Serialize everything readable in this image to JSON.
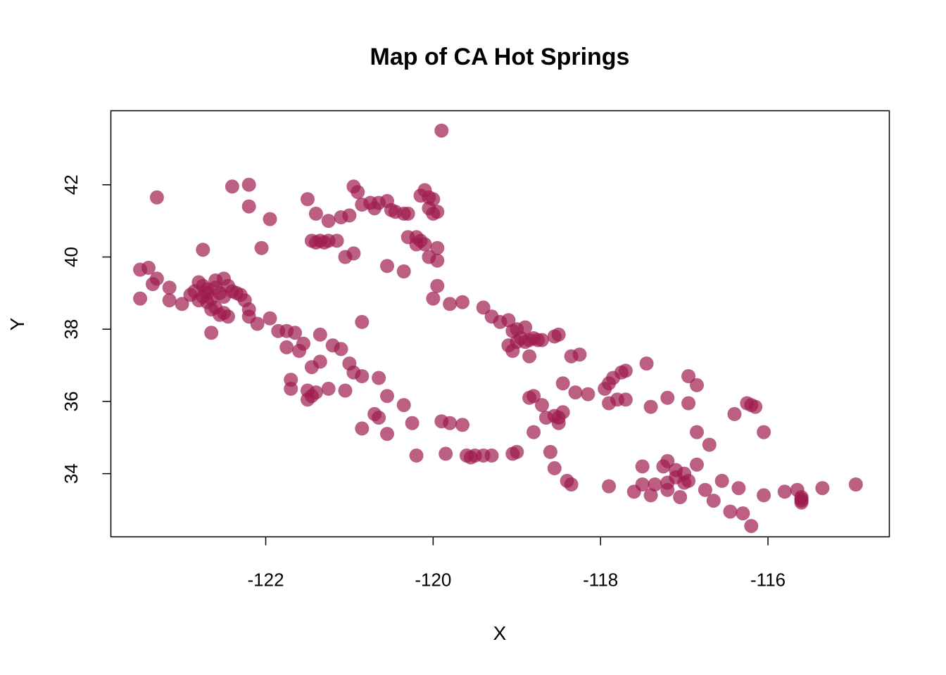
{
  "chart_data": {
    "type": "scatter",
    "title": "Map of CA Hot Springs",
    "xlabel": "X",
    "ylabel": "Y",
    "xlim": [
      -123.85,
      -114.55
    ],
    "ylim": [
      32.25,
      44.05
    ],
    "xticks": [
      -122,
      -120,
      -118,
      -116
    ],
    "yticks": [
      34,
      36,
      38,
      40,
      42
    ],
    "xtick_labels": [
      "-122",
      "-120",
      "-118",
      "-116"
    ],
    "ytick_labels": [
      "34",
      "36",
      "38",
      "40",
      "42"
    ],
    "grid": false,
    "legend": "none",
    "marker_color": "#9e1b4e",
    "marker_opacity": 0.7,
    "points": [
      [
        -119.9,
        43.5
      ],
      [
        -123.5,
        39.65
      ],
      [
        -123.4,
        39.7
      ],
      [
        -123.3,
        39.4
      ],
      [
        -123.35,
        39.25
      ],
      [
        -123.15,
        39.15
      ],
      [
        -123.5,
        38.85
      ],
      [
        -123.15,
        38.8
      ],
      [
        -123.0,
        38.7
      ],
      [
        -123.3,
        41.65
      ],
      [
        -122.9,
        38.95
      ],
      [
        -122.8,
        39.3
      ],
      [
        -122.75,
        38.9
      ],
      [
        -122.7,
        39.1
      ],
      [
        -122.65,
        38.85
      ],
      [
        -122.6,
        39.35
      ],
      [
        -122.55,
        39.0
      ],
      [
        -122.5,
        39.4
      ],
      [
        -122.45,
        39.2
      ],
      [
        -122.4,
        39.05
      ],
      [
        -122.35,
        39.0
      ],
      [
        -122.3,
        38.95
      ],
      [
        -122.75,
        39.2
      ],
      [
        -122.7,
        38.75
      ],
      [
        -122.6,
        38.6
      ],
      [
        -122.55,
        38.4
      ],
      [
        -122.5,
        38.45
      ],
      [
        -122.45,
        38.35
      ],
      [
        -122.65,
        38.55
      ],
      [
        -122.8,
        38.8
      ],
      [
        -122.85,
        39.05
      ],
      [
        -122.7,
        39.0
      ],
      [
        -122.6,
        39.15
      ],
      [
        -122.5,
        38.9
      ],
      [
        -122.75,
        40.2
      ],
      [
        -122.65,
        37.9
      ],
      [
        -122.25,
        38.8
      ],
      [
        -122.2,
        38.55
      ],
      [
        -122.2,
        38.35
      ],
      [
        -122.1,
        38.15
      ],
      [
        -121.95,
        38.3
      ],
      [
        -121.85,
        37.95
      ],
      [
        -121.75,
        37.95
      ],
      [
        -121.65,
        37.9
      ],
      [
        -121.75,
        37.5
      ],
      [
        -121.6,
        37.4
      ],
      [
        -121.55,
        37.6
      ],
      [
        -121.35,
        37.85
      ],
      [
        -121.2,
        37.55
      ],
      [
        -121.1,
        37.45
      ],
      [
        -121.35,
        37.1
      ],
      [
        -121.45,
        36.95
      ],
      [
        -121.7,
        36.6
      ],
      [
        -121.7,
        36.35
      ],
      [
        -121.5,
        36.3
      ],
      [
        -121.45,
        36.15
      ],
      [
        -121.5,
        36.05
      ],
      [
        -121.4,
        36.25
      ],
      [
        -121.25,
        36.35
      ],
      [
        -122.4,
        41.95
      ],
      [
        -122.2,
        42.0
      ],
      [
        -122.2,
        41.4
      ],
      [
        -122.05,
        40.25
      ],
      [
        -121.95,
        41.05
      ],
      [
        -121.5,
        41.6
      ],
      [
        -121.4,
        41.2
      ],
      [
        -121.25,
        41.0
      ],
      [
        -121.1,
        41.1
      ],
      [
        -121.0,
        41.15
      ],
      [
        -121.45,
        40.45
      ],
      [
        -121.35,
        40.45
      ],
      [
        -121.3,
        40.4
      ],
      [
        -121.25,
        40.45
      ],
      [
        -121.4,
        40.4
      ],
      [
        -121.15,
        40.45
      ],
      [
        -120.95,
        41.95
      ],
      [
        -120.9,
        41.8
      ],
      [
        -120.85,
        41.45
      ],
      [
        -120.75,
        41.5
      ],
      [
        -120.7,
        41.35
      ],
      [
        -120.65,
        41.5
      ],
      [
        -120.55,
        41.55
      ],
      [
        -120.5,
        41.3
      ],
      [
        -120.45,
        41.25
      ],
      [
        -120.35,
        41.2
      ],
      [
        -120.3,
        41.2
      ],
      [
        -120.15,
        41.7
      ],
      [
        -120.1,
        41.85
      ],
      [
        -120.05,
        41.65
      ],
      [
        -120.0,
        41.6
      ],
      [
        -120.05,
        41.35
      ],
      [
        -120.0,
        41.2
      ],
      [
        -119.95,
        41.25
      ],
      [
        -120.2,
        40.55
      ],
      [
        -120.15,
        40.45
      ],
      [
        -120.1,
        40.35
      ],
      [
        -120.2,
        40.35
      ],
      [
        -120.3,
        40.55
      ],
      [
        -119.95,
        40.25
      ],
      [
        -120.05,
        40.0
      ],
      [
        -119.95,
        39.9
      ],
      [
        -120.55,
        39.75
      ],
      [
        -120.35,
        39.6
      ],
      [
        -120.95,
        40.1
      ],
      [
        -121.05,
        40.0
      ],
      [
        -119.95,
        39.2
      ],
      [
        -120.0,
        38.85
      ],
      [
        -119.8,
        38.7
      ],
      [
        -119.65,
        38.75
      ],
      [
        -120.85,
        38.2
      ],
      [
        -121.0,
        37.05
      ],
      [
        -120.95,
        36.8
      ],
      [
        -120.85,
        36.7
      ],
      [
        -120.65,
        36.65
      ],
      [
        -120.55,
        36.15
      ],
      [
        -120.35,
        35.9
      ],
      [
        -120.7,
        35.65
      ],
      [
        -120.65,
        35.55
      ],
      [
        -120.55,
        35.1
      ],
      [
        -120.85,
        35.25
      ],
      [
        -121.05,
        36.3
      ],
      [
        -120.25,
        35.4
      ],
      [
        -120.2,
        34.5
      ],
      [
        -119.9,
        35.45
      ],
      [
        -119.8,
        35.4
      ],
      [
        -119.65,
        35.35
      ],
      [
        -119.85,
        34.55
      ],
      [
        -119.6,
        34.5
      ],
      [
        -119.55,
        34.45
      ],
      [
        -119.5,
        34.5
      ],
      [
        -119.4,
        34.5
      ],
      [
        -119.3,
        34.5
      ],
      [
        -119.05,
        34.55
      ],
      [
        -119.0,
        34.6
      ],
      [
        -119.4,
        38.6
      ],
      [
        -119.3,
        38.35
      ],
      [
        -119.2,
        38.2
      ],
      [
        -119.1,
        38.25
      ],
      [
        -119.05,
        37.95
      ],
      [
        -119.0,
        38.0
      ],
      [
        -118.9,
        38.05
      ],
      [
        -118.95,
        37.75
      ],
      [
        -118.9,
        37.65
      ],
      [
        -118.85,
        37.7
      ],
      [
        -118.8,
        37.75
      ],
      [
        -118.75,
        37.7
      ],
      [
        -118.7,
        37.7
      ],
      [
        -119.05,
        37.4
      ],
      [
        -118.85,
        37.25
      ],
      [
        -119.1,
        37.55
      ],
      [
        -119.0,
        37.65
      ],
      [
        -118.5,
        37.85
      ],
      [
        -118.55,
        37.8
      ],
      [
        -118.35,
        37.25
      ],
      [
        -118.25,
        37.3
      ],
      [
        -118.45,
        36.5
      ],
      [
        -118.3,
        36.25
      ],
      [
        -118.15,
        36.2
      ],
      [
        -118.8,
        36.15
      ],
      [
        -118.85,
        36.1
      ],
      [
        -118.7,
        35.9
      ],
      [
        -118.65,
        35.55
      ],
      [
        -118.55,
        35.6
      ],
      [
        -118.5,
        35.55
      ],
      [
        -118.45,
        35.7
      ],
      [
        -118.5,
        35.4
      ],
      [
        -118.8,
        35.15
      ],
      [
        -118.6,
        34.6
      ],
      [
        -118.55,
        34.15
      ],
      [
        -118.4,
        33.8
      ],
      [
        -118.35,
        33.7
      ],
      [
        -117.95,
        36.35
      ],
      [
        -117.9,
        36.5
      ],
      [
        -117.85,
        36.65
      ],
      [
        -117.75,
        36.8
      ],
      [
        -117.7,
        36.85
      ],
      [
        -117.8,
        36.05
      ],
      [
        -117.7,
        36.05
      ],
      [
        -117.9,
        35.95
      ],
      [
        -117.45,
        37.05
      ],
      [
        -117.4,
        35.85
      ],
      [
        -117.2,
        36.1
      ],
      [
        -116.95,
        36.7
      ],
      [
        -116.85,
        36.45
      ],
      [
        -116.95,
        35.95
      ],
      [
        -116.85,
        35.15
      ],
      [
        -116.7,
        34.8
      ],
      [
        -116.85,
        34.25
      ],
      [
        -117.5,
        34.2
      ],
      [
        -117.2,
        34.35
      ],
      [
        -117.25,
        34.2
      ],
      [
        -117.1,
        34.1
      ],
      [
        -117.0,
        34.0
      ],
      [
        -117.1,
        33.9
      ],
      [
        -117.0,
        33.75
      ],
      [
        -116.95,
        33.8
      ],
      [
        -117.2,
        33.75
      ],
      [
        -117.35,
        33.7
      ],
      [
        -117.5,
        33.7
      ],
      [
        -117.6,
        33.5
      ],
      [
        -117.4,
        33.4
      ],
      [
        -117.2,
        33.55
      ],
      [
        -117.05,
        33.35
      ],
      [
        -117.9,
        33.65
      ],
      [
        -116.75,
        33.55
      ],
      [
        -116.65,
        33.25
      ],
      [
        -116.55,
        33.8
      ],
      [
        -116.45,
        32.95
      ],
      [
        -116.35,
        33.6
      ],
      [
        -116.4,
        35.65
      ],
      [
        -116.25,
        35.95
      ],
      [
        -116.2,
        35.9
      ],
      [
        -116.15,
        35.85
      ],
      [
        -116.05,
        35.15
      ],
      [
        -116.3,
        32.9
      ],
      [
        -116.2,
        32.55
      ],
      [
        -116.05,
        33.4
      ],
      [
        -115.8,
        33.5
      ],
      [
        -115.65,
        33.55
      ],
      [
        -115.6,
        33.35
      ],
      [
        -115.6,
        33.3
      ],
      [
        -115.6,
        33.25
      ],
      [
        -115.6,
        33.2
      ],
      [
        -115.35,
        33.6
      ],
      [
        -114.95,
        33.7
      ]
    ]
  }
}
